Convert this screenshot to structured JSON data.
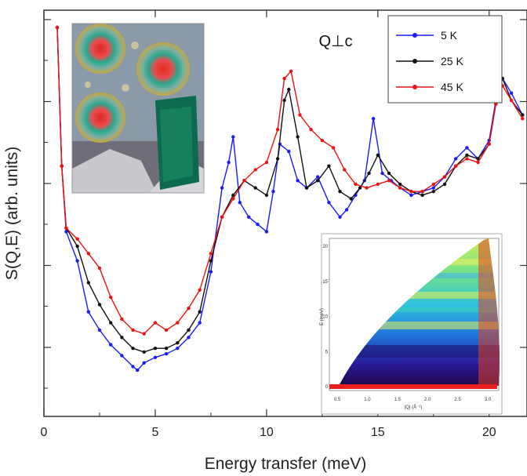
{
  "chart_data": {
    "type": "line",
    "title": "",
    "annotation": "Q⊥c",
    "xlabel": "Energy transfer (meV)",
    "ylabel": "S(Q,E) (arb. units)",
    "xlim": [
      0,
      21.7
    ],
    "ylim": [
      0,
      10
    ],
    "x_ticks": [
      0,
      5,
      10,
      15,
      20
    ],
    "legend": "top-right",
    "grid": false,
    "series": [
      {
        "name": "5 K",
        "color": "#1a1aff",
        "x": [
          0.6,
          0.8,
          1.0,
          1.5,
          2.0,
          2.5,
          3.0,
          3.5,
          4.0,
          4.2,
          4.5,
          5.0,
          5.5,
          6.0,
          6.5,
          7.0,
          7.5,
          8.0,
          8.3,
          8.5,
          8.8,
          9.2,
          9.6,
          10.0,
          10.3,
          10.6,
          11.0,
          11.4,
          11.8,
          12.3,
          12.8,
          13.3,
          13.6,
          14.0,
          14.4,
          14.8,
          15.2,
          15.6,
          16.0,
          16.5,
          17.0,
          17.5,
          18.0,
          18.5,
          19.0,
          19.5,
          20.0,
          20.3,
          20.6,
          21.0,
          21.5
        ],
        "values": [
          10.0,
          6.2,
          4.4,
          3.6,
          2.2,
          1.7,
          1.3,
          1.0,
          0.7,
          0.6,
          0.8,
          0.95,
          1.05,
          1.2,
          1.5,
          1.9,
          3.3,
          5.6,
          6.3,
          7.0,
          5.2,
          4.8,
          4.6,
          4.4,
          5.5,
          6.8,
          6.6,
          5.8,
          5.6,
          5.9,
          5.2,
          4.8,
          5.0,
          5.4,
          5.8,
          7.5,
          6.0,
          5.8,
          5.6,
          5.4,
          5.5,
          5.6,
          5.9,
          6.4,
          6.7,
          6.4,
          6.9,
          8.0,
          8.6,
          8.2,
          7.6
        ]
      },
      {
        "name": "25 K",
        "color": "#111111",
        "x": [
          0.6,
          0.8,
          1.0,
          1.5,
          2.0,
          2.5,
          3.0,
          3.5,
          4.0,
          4.5,
          5.0,
          5.5,
          6.0,
          6.5,
          7.0,
          7.5,
          8.0,
          8.5,
          9.0,
          9.5,
          10.0,
          10.5,
          10.8,
          11.0,
          11.4,
          11.8,
          12.3,
          12.8,
          13.3,
          13.8,
          14.2,
          14.6,
          15.0,
          15.5,
          16.0,
          16.5,
          17.0,
          17.5,
          18.0,
          18.5,
          19.0,
          19.5,
          20.0,
          20.3,
          20.6,
          21.0,
          21.5
        ],
        "values": [
          10.0,
          6.2,
          4.5,
          4.0,
          3.0,
          2.4,
          1.9,
          1.5,
          1.2,
          1.1,
          1.2,
          1.2,
          1.35,
          1.7,
          2.2,
          3.6,
          4.8,
          5.4,
          5.8,
          5.6,
          5.4,
          6.4,
          8.0,
          8.3,
          7.0,
          5.6,
          5.8,
          6.2,
          5.5,
          5.3,
          5.6,
          6.0,
          6.5,
          6.0,
          5.7,
          5.5,
          5.4,
          5.5,
          5.7,
          6.2,
          6.5,
          6.4,
          6.8,
          7.9,
          8.6,
          8.0,
          7.6
        ]
      },
      {
        "name": "45 K",
        "color": "#ee1111",
        "x": [
          0.6,
          0.8,
          1.0,
          1.5,
          2.0,
          2.5,
          3.0,
          3.5,
          4.0,
          4.5,
          5.0,
          5.5,
          6.0,
          6.5,
          7.0,
          7.5,
          8.0,
          8.5,
          9.0,
          9.5,
          10.0,
          10.5,
          10.8,
          11.1,
          11.5,
          12.0,
          12.5,
          13.0,
          13.5,
          14.0,
          14.5,
          15.0,
          15.5,
          16.0,
          16.5,
          17.0,
          17.5,
          18.0,
          18.5,
          19.0,
          19.5,
          20.0,
          20.3,
          20.6,
          21.0,
          21.5
        ],
        "values": [
          10.0,
          6.2,
          4.5,
          4.2,
          3.8,
          3.4,
          2.6,
          2.0,
          1.7,
          1.6,
          1.9,
          1.7,
          1.9,
          2.3,
          2.8,
          3.8,
          4.8,
          5.3,
          5.8,
          6.1,
          6.3,
          7.2,
          8.6,
          8.8,
          7.6,
          7.2,
          6.9,
          6.7,
          6.1,
          5.7,
          5.6,
          5.7,
          5.8,
          5.6,
          5.5,
          5.5,
          5.7,
          5.9,
          6.2,
          6.4,
          6.3,
          6.8,
          7.9,
          8.4,
          8.0,
          7.5
        ]
      }
    ]
  },
  "inset": {
    "ylabel": "E (meV)",
    "xlabel": "|Q| (Å⁻¹)",
    "y_ticks": [
      "0",
      "5",
      "10",
      "15",
      "20"
    ],
    "x_ticks": [
      "0.5",
      "1.0",
      "1.5",
      "2.0",
      "2.5",
      "3.0"
    ]
  }
}
